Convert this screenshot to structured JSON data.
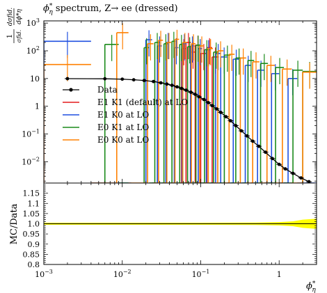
{
  "chart_data": {
    "type": "line",
    "title": "ϕ*η spectrum, Z→ ee (dressed)",
    "title_main": "ϕ",
    "title_sup": "*",
    "title_sub": "η",
    "title_rest": " spectrum, Z→ ee (dressed)",
    "ylabel_top": {
      "num": "1",
      "frac_den": "σfid.",
      "dnum": "dσfid.",
      "dden": "dϕ*η"
    },
    "ylabel_bottom": "MC/Data",
    "xlabel": "ϕ*η",
    "xlabel_main": "ϕ",
    "xlabel_sup": "*",
    "xlabel_sub": "η",
    "xscale": "log",
    "xlim": [
      0.001,
      3.0
    ],
    "top_panel": {
      "yscale": "log",
      "ylim": [
        0.0017,
        1200
      ],
      "y_ticks": [
        {
          "v": 0.01,
          "label": "10",
          "exp": "−2"
        },
        {
          "v": 0.1,
          "label": "10",
          "exp": "−1"
        },
        {
          "v": 1,
          "label": "1",
          "exp": ""
        },
        {
          "v": 10,
          "label": "10",
          "exp": ""
        },
        {
          "v": 100,
          "label": "10",
          "exp": "2"
        },
        {
          "v": 1000,
          "label": "10",
          "exp": "3"
        }
      ]
    },
    "bottom_panel": {
      "ylim": [
        0.8,
        1.2
      ],
      "y_ticks": [
        "0.8",
        "0.85",
        "0.9",
        "0.95",
        "1.0",
        "1.05",
        "1.1",
        "1.15"
      ],
      "band_color": "#ffff00"
    },
    "x_ticks": [
      {
        "v": 0.001,
        "label": "10",
        "exp": "−3"
      },
      {
        "v": 0.01,
        "label": "10",
        "exp": "−2"
      },
      {
        "v": 0.1,
        "label": "10",
        "exp": "−1"
      },
      {
        "v": 1,
        "label": "1",
        "exp": ""
      }
    ],
    "legend": {
      "position": "center-left",
      "entries": [
        {
          "label": "Data",
          "color": "#000000",
          "marker": "dot"
        },
        {
          "label": "E1 K1 (default) at LO",
          "color": "#e41a1c",
          "marker": "line"
        },
        {
          "label": "E1 K0 at LO",
          "color": "#1f4fe0",
          "marker": "line"
        },
        {
          "label": "E0 K1 at LO",
          "color": "#1a8a1a",
          "marker": "line"
        },
        {
          "label": "E0 K0 at LO",
          "color": "#ff8000",
          "marker": "line"
        }
      ]
    },
    "data": {
      "name": "Data",
      "x": [
        0.002,
        0.006,
        0.01,
        0.014,
        0.019,
        0.025,
        0.031,
        0.037,
        0.043,
        0.05,
        0.057,
        0.065,
        0.075,
        0.085,
        0.095,
        0.11,
        0.125,
        0.14,
        0.16,
        0.18,
        0.21,
        0.24,
        0.28,
        0.33,
        0.39,
        0.46,
        0.55,
        0.67,
        0.82,
        1.0,
        1.2,
        1.5,
        1.9,
        2.4
      ],
      "y": [
        9.9,
        9.8,
        9.5,
        9.0,
        8.5,
        7.8,
        7.0,
        6.3,
        5.7,
        5.0,
        4.4,
        3.8,
        3.2,
        2.7,
        2.2,
        1.75,
        1.35,
        1.05,
        0.8,
        0.6,
        0.42,
        0.3,
        0.2,
        0.13,
        0.085,
        0.055,
        0.036,
        0.022,
        0.013,
        0.008,
        0.0055,
        0.0038,
        0.0026,
        0.0019
      ]
    },
    "mc_series": [
      {
        "color": "#e41a1c",
        "bins": [
          [
            0.057,
            0.065,
            120
          ],
          [
            0.065,
            0.075,
            200
          ],
          [
            0.075,
            0.085,
            90
          ],
          [
            0.085,
            0.1,
            160
          ],
          [
            0.1,
            0.12,
            80
          ],
          [
            0.12,
            0.14,
            130
          ],
          [
            0.14,
            0.17,
            60
          ]
        ]
      },
      {
        "color": "#1f4fe0",
        "bins": [
          [
            0.001,
            0.004,
            220
          ],
          [
            0.004,
            0.009,
            0.0017
          ],
          [
            0.009,
            0.013,
            0.0017
          ],
          [
            0.02,
            0.024,
            250
          ],
          [
            0.024,
            0.028,
            0.0017
          ],
          [
            0.028,
            0.032,
            150
          ],
          [
            0.032,
            0.036,
            0.0017
          ],
          [
            0.036,
            0.041,
            200
          ],
          [
            0.041,
            0.046,
            0.0017
          ],
          [
            0.046,
            0.052,
            130
          ],
          [
            0.052,
            0.058,
            0.0017
          ],
          [
            0.058,
            0.066,
            180
          ],
          [
            0.066,
            0.074,
            0.0017
          ],
          [
            0.074,
            0.083,
            150
          ],
          [
            0.083,
            0.093,
            0.0017
          ],
          [
            0.093,
            0.105,
            120
          ],
          [
            0.105,
            0.118,
            0.0017
          ],
          [
            0.118,
            0.135,
            110
          ],
          [
            0.135,
            0.155,
            0.0017
          ],
          [
            0.155,
            0.18,
            80
          ],
          [
            0.18,
            0.22,
            60
          ],
          [
            0.22,
            0.26,
            0.0017
          ],
          [
            0.26,
            0.31,
            50
          ],
          [
            0.31,
            0.37,
            0.0017
          ],
          [
            0.37,
            0.44,
            30
          ],
          [
            0.44,
            0.53,
            0.0017
          ],
          [
            0.53,
            0.65,
            20
          ],
          [
            0.65,
            0.8,
            0.0017
          ],
          [
            0.8,
            1.0,
            15
          ],
          [
            1.0,
            1.3,
            0.0017
          ],
          [
            1.3,
            1.7,
            10
          ],
          [
            1.7,
            3.0,
            0.0017
          ]
        ]
      },
      {
        "color": "#1a8a1a",
        "bins": [
          [
            0.006,
            0.009,
            170
          ],
          [
            0.009,
            0.012,
            0.0017
          ],
          [
            0.019,
            0.022,
            130
          ],
          [
            0.022,
            0.026,
            0.0017
          ],
          [
            0.026,
            0.03,
            200
          ],
          [
            0.03,
            0.034,
            0.0017
          ],
          [
            0.034,
            0.038,
            180
          ],
          [
            0.038,
            0.043,
            0.0017
          ],
          [
            0.043,
            0.048,
            220
          ],
          [
            0.048,
            0.054,
            0.0017
          ],
          [
            0.054,
            0.06,
            170
          ],
          [
            0.06,
            0.068,
            0.0017
          ],
          [
            0.068,
            0.077,
            140
          ],
          [
            0.077,
            0.087,
            0.0017
          ],
          [
            0.087,
            0.099,
            160
          ],
          [
            0.099,
            0.112,
            0.0017
          ],
          [
            0.112,
            0.128,
            110
          ],
          [
            0.128,
            0.146,
            0.0017
          ],
          [
            0.146,
            0.17,
            90
          ],
          [
            0.17,
            0.2,
            0.0017
          ],
          [
            0.2,
            0.24,
            70
          ],
          [
            0.24,
            0.28,
            0.0017
          ],
          [
            0.28,
            0.34,
            55
          ],
          [
            0.34,
            0.4,
            0.0017
          ],
          [
            0.4,
            0.48,
            45
          ],
          [
            0.48,
            0.58,
            0.0017
          ],
          [
            0.58,
            0.72,
            35
          ],
          [
            0.72,
            0.9,
            0.0017
          ],
          [
            0.9,
            1.15,
            25
          ],
          [
            1.15,
            1.5,
            0.0017
          ],
          [
            1.5,
            2.0,
            20
          ],
          [
            2.0,
            3.0,
            18
          ]
        ]
      },
      {
        "color": "#ff8000",
        "bins": [
          [
            0.001,
            0.004,
            32
          ],
          [
            0.004,
            0.0085,
            0.0017
          ],
          [
            0.0085,
            0.012,
            450
          ],
          [
            0.012,
            0.02,
            0.0017
          ],
          [
            0.021,
            0.025,
            180
          ],
          [
            0.025,
            0.029,
            0.0017
          ],
          [
            0.029,
            0.033,
            240
          ],
          [
            0.033,
            0.037,
            0.0017
          ],
          [
            0.037,
            0.042,
            200
          ],
          [
            0.042,
            0.047,
            0.0017
          ],
          [
            0.047,
            0.053,
            260
          ],
          [
            0.053,
            0.059,
            0.0017
          ],
          [
            0.059,
            0.067,
            200
          ],
          [
            0.067,
            0.076,
            0.0017
          ],
          [
            0.076,
            0.086,
            180
          ],
          [
            0.086,
            0.097,
            0.0017
          ],
          [
            0.097,
            0.11,
            150
          ],
          [
            0.11,
            0.125,
            0.0017
          ],
          [
            0.125,
            0.143,
            120
          ],
          [
            0.143,
            0.165,
            0.0017
          ],
          [
            0.165,
            0.195,
            100
          ],
          [
            0.195,
            0.23,
            0.0017
          ],
          [
            0.23,
            0.27,
            75
          ],
          [
            0.27,
            0.32,
            0.0017
          ],
          [
            0.32,
            0.38,
            55
          ],
          [
            0.38,
            0.46,
            0.0017
          ],
          [
            0.46,
            0.56,
            40
          ],
          [
            0.56,
            0.7,
            0.0017
          ],
          [
            0.7,
            0.88,
            30
          ],
          [
            0.88,
            1.1,
            0.0017
          ],
          [
            1.1,
            1.45,
            22
          ],
          [
            1.45,
            2.0,
            0.0017
          ],
          [
            2.0,
            3.0,
            17
          ]
        ]
      }
    ]
  }
}
